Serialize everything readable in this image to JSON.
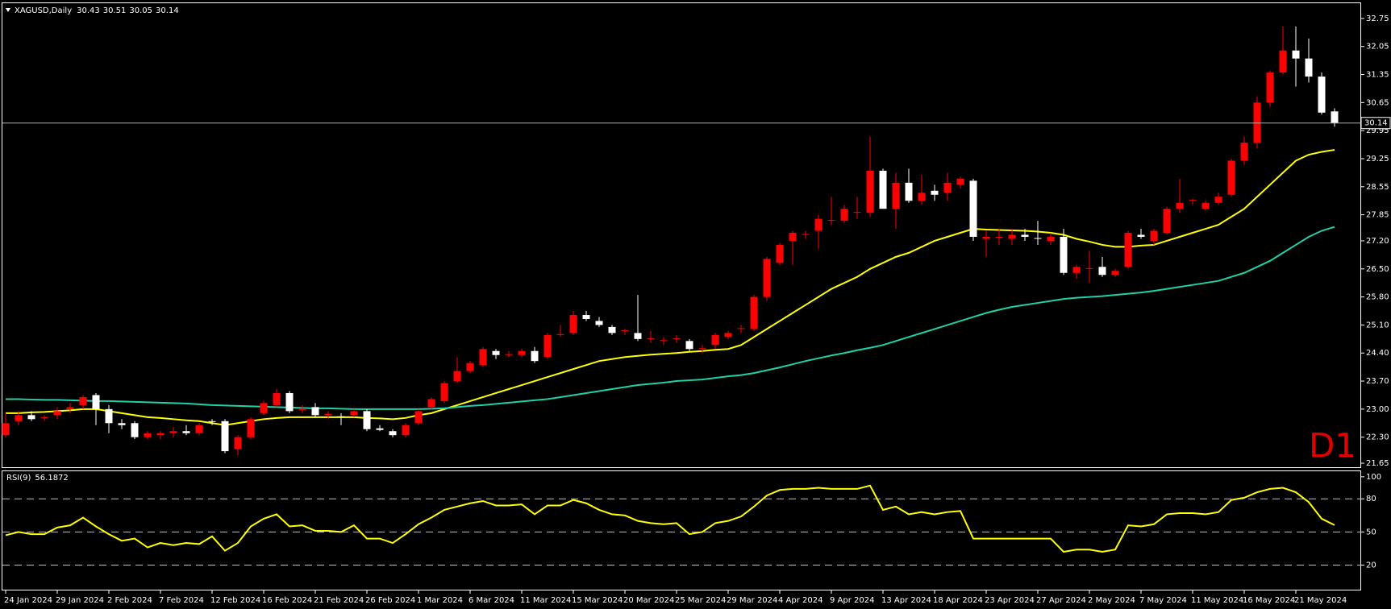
{
  "chart_data": [
    {
      "type": "candlestick",
      "title": "XAGUSD,Daily",
      "timeframe_label": "D1",
      "up_color": "#ff0000",
      "down_color": "#ffffff",
      "categories": [
        "24 Jan 2024",
        null,
        null,
        null,
        "29 Jan 2024",
        null,
        null,
        null,
        "2 Feb 2024",
        null,
        null,
        null,
        "7 Feb 2024",
        null,
        null,
        null,
        "12 Feb 2024",
        null,
        null,
        null,
        "16 Feb 2024",
        null,
        null,
        null,
        "21 Feb 2024",
        null,
        null,
        null,
        "26 Feb 2024",
        null,
        null,
        null,
        "1 Mar 2024",
        null,
        null,
        null,
        "6 Mar 2024",
        null,
        null,
        null,
        "11 Mar 2024",
        null,
        null,
        null,
        "15 Mar 2024",
        null,
        null,
        null,
        "20 Mar 2024",
        null,
        null,
        null,
        "25 Mar 2024",
        null,
        null,
        null,
        "29 Mar 2024",
        null,
        null,
        null,
        "4 Apr 2024",
        null,
        null,
        null,
        "9 Apr 2024",
        null,
        null,
        null,
        "13 Apr 2024",
        null,
        null,
        null,
        "18 Apr 2024",
        null,
        null,
        null,
        "23 Apr 2024",
        null,
        null,
        null,
        "27 Apr 2024",
        null,
        null,
        null,
        "2 May 2024",
        null,
        null,
        null,
        "7 May 2024",
        null,
        null,
        null,
        "11 May 2024",
        null,
        null,
        null,
        "16 May 2024",
        null,
        null,
        null,
        "21 May 2024",
        null,
        null,
        null
      ],
      "open": [
        22.35,
        22.7,
        22.85,
        22.78,
        22.85,
        23.0,
        23.1,
        23.35,
        23.0,
        22.65,
        22.65,
        22.3,
        22.35,
        22.4,
        22.45,
        22.4,
        22.7,
        22.7,
        22.0,
        22.3,
        22.9,
        23.1,
        23.4,
        22.98,
        23.05,
        22.85,
        22.82,
        22.85,
        22.95,
        22.52,
        22.45,
        22.35,
        22.65,
        23.05,
        23.2,
        23.7,
        23.95,
        24.1,
        24.45,
        24.35,
        24.35,
        24.45,
        24.3,
        24.85,
        24.9,
        25.35,
        25.2,
        25.05,
        24.95,
        24.9,
        24.75,
        24.7,
        24.75,
        24.7,
        24.5,
        24.6,
        24.8,
        25.0,
        25.0,
        25.8,
        26.65,
        27.2,
        27.35,
        27.45,
        27.7,
        27.7,
        27.9,
        27.9,
        28.95,
        28.0,
        28.65,
        28.2,
        28.45,
        28.4,
        28.6,
        28.7,
        27.25,
        27.28,
        27.25,
        27.35,
        27.27,
        27.2,
        27.3,
        26.4,
        26.5,
        26.55,
        26.35,
        26.55,
        27.35,
        27.2,
        27.4,
        28.0,
        28.2,
        28.0,
        28.15,
        28.35,
        29.2,
        29.65,
        30.65,
        31.4,
        31.95,
        31.75,
        31.3,
        30.43
      ],
      "high": [
        22.9,
        22.95,
        22.95,
        22.85,
        23.05,
        23.15,
        23.35,
        23.4,
        23.1,
        22.75,
        22.7,
        22.45,
        22.45,
        22.55,
        22.6,
        22.65,
        22.75,
        22.75,
        22.35,
        22.8,
        23.2,
        23.5,
        23.45,
        23.1,
        23.15,
        22.95,
        22.9,
        23.0,
        23.0,
        22.6,
        22.5,
        22.65,
        23.0,
        23.3,
        23.7,
        24.3,
        24.2,
        24.55,
        24.5,
        24.45,
        24.5,
        24.55,
        24.9,
        25.1,
        25.45,
        25.45,
        25.3,
        25.1,
        25.0,
        25.85,
        24.95,
        24.8,
        24.85,
        24.75,
        24.6,
        24.9,
        24.95,
        25.1,
        25.85,
        26.8,
        27.15,
        27.45,
        27.45,
        27.85,
        28.3,
        28.1,
        28.3,
        29.8,
        29.0,
        28.9,
        29.0,
        28.85,
        28.6,
        28.9,
        28.8,
        28.75,
        27.45,
        27.5,
        27.5,
        27.5,
        27.7,
        27.4,
        27.5,
        26.6,
        26.95,
        26.8,
        26.5,
        27.45,
        27.5,
        27.5,
        28.05,
        28.75,
        28.25,
        28.2,
        28.4,
        29.25,
        29.8,
        30.8,
        31.45,
        32.55,
        32.55,
        32.25,
        31.4,
        30.51
      ],
      "low": [
        22.3,
        22.6,
        22.7,
        22.7,
        22.75,
        22.9,
        23.0,
        22.6,
        22.4,
        22.5,
        22.25,
        22.25,
        22.25,
        22.3,
        22.35,
        22.35,
        22.6,
        21.9,
        21.85,
        22.25,
        22.85,
        23.05,
        22.9,
        22.9,
        22.8,
        22.75,
        22.6,
        22.8,
        22.45,
        22.45,
        22.3,
        22.3,
        22.6,
        23.0,
        23.15,
        23.65,
        23.9,
        24.05,
        24.25,
        24.3,
        24.3,
        24.15,
        24.25,
        24.8,
        24.85,
        25.2,
        25.05,
        24.85,
        24.85,
        24.7,
        24.65,
        24.6,
        24.65,
        24.45,
        24.4,
        24.5,
        24.75,
        24.9,
        24.95,
        25.7,
        26.6,
        26.6,
        27.25,
        27.0,
        27.6,
        27.65,
        27.75,
        27.8,
        28.0,
        27.5,
        28.15,
        28.1,
        28.2,
        28.2,
        28.5,
        27.2,
        26.8,
        27.1,
        27.1,
        27.2,
        27.1,
        27.1,
        26.35,
        26.25,
        26.15,
        26.3,
        26.3,
        26.5,
        27.25,
        27.1,
        27.35,
        27.9,
        28.1,
        27.95,
        28.1,
        28.3,
        29.1,
        29.5,
        30.55,
        31.35,
        31.05,
        31.15,
        30.35,
        30.05
      ],
      "close": [
        22.65,
        22.85,
        22.75,
        22.8,
        22.95,
        23.05,
        23.3,
        23.0,
        22.65,
        22.6,
        22.3,
        22.4,
        22.4,
        22.45,
        22.4,
        22.6,
        22.68,
        21.95,
        22.3,
        22.75,
        23.15,
        23.4,
        22.95,
        23.02,
        22.85,
        22.88,
        22.8,
        22.95,
        22.5,
        22.48,
        22.35,
        22.6,
        22.95,
        23.25,
        23.65,
        23.95,
        24.15,
        24.5,
        24.35,
        24.37,
        24.45,
        24.2,
        24.85,
        24.87,
        25.35,
        25.25,
        25.1,
        24.9,
        24.97,
        24.75,
        24.77,
        24.72,
        24.77,
        24.5,
        24.52,
        24.85,
        24.9,
        25.02,
        25.8,
        26.75,
        27.1,
        27.4,
        27.37,
        27.75,
        27.72,
        28.0,
        27.92,
        28.95,
        28.0,
        28.65,
        28.2,
        28.4,
        28.35,
        28.65,
        28.75,
        27.3,
        27.3,
        27.3,
        27.35,
        27.3,
        27.25,
        27.3,
        26.4,
        26.55,
        26.52,
        26.35,
        26.45,
        27.4,
        27.3,
        27.45,
        28.0,
        28.15,
        28.22,
        28.15,
        28.3,
        29.2,
        29.65,
        30.65,
        31.4,
        31.95,
        31.75,
        31.3,
        30.4,
        30.14
      ],
      "series": [
        {
          "color": "#ffff00",
          "values": [
            22.9,
            22.9,
            22.92,
            22.93,
            22.95,
            22.97,
            23.0,
            23.0,
            22.95,
            22.9,
            22.85,
            22.8,
            22.78,
            22.75,
            22.72,
            22.7,
            22.65,
            22.6,
            22.65,
            22.7,
            22.75,
            22.78,
            22.8,
            22.8,
            22.8,
            22.8,
            22.8,
            22.8,
            22.78,
            22.77,
            22.75,
            22.78,
            22.85,
            22.9,
            23.0,
            23.1,
            23.2,
            23.3,
            23.4,
            23.5,
            23.6,
            23.7,
            23.8,
            23.9,
            24.0,
            24.1,
            24.2,
            24.25,
            24.3,
            24.33,
            24.36,
            24.38,
            24.4,
            24.43,
            24.45,
            24.48,
            24.5,
            24.6,
            24.8,
            25.0,
            25.2,
            25.4,
            25.6,
            25.8,
            26.0,
            26.15,
            26.3,
            26.5,
            26.65,
            26.8,
            26.9,
            27.05,
            27.2,
            27.3,
            27.4,
            27.5,
            27.48,
            27.47,
            27.46,
            27.45,
            27.43,
            27.4,
            27.35,
            27.25,
            27.18,
            27.1,
            27.05,
            27.05,
            27.08,
            27.1,
            27.2,
            27.3,
            27.4,
            27.5,
            27.6,
            27.8,
            28.0,
            28.3,
            28.6,
            28.9,
            29.2,
            29.35,
            29.42,
            29.47
          ]
        },
        {
          "color": "#20d0a8",
          "values": [
            23.25,
            23.25,
            23.24,
            23.23,
            23.23,
            23.22,
            23.21,
            23.2,
            23.2,
            23.19,
            23.18,
            23.17,
            23.16,
            23.15,
            23.14,
            23.12,
            23.1,
            23.09,
            23.08,
            23.07,
            23.06,
            23.05,
            23.04,
            23.03,
            23.02,
            23.02,
            23.01,
            23.0,
            23.0,
            23.0,
            23.0,
            23.0,
            23.0,
            23.01,
            23.02,
            23.05,
            23.08,
            23.1,
            23.13,
            23.16,
            23.19,
            23.22,
            23.25,
            23.3,
            23.35,
            23.4,
            23.45,
            23.5,
            23.55,
            23.6,
            23.63,
            23.66,
            23.7,
            23.72,
            23.74,
            23.78,
            23.82,
            23.85,
            23.9,
            23.97,
            24.04,
            24.12,
            24.2,
            24.27,
            24.34,
            24.4,
            24.47,
            24.53,
            24.6,
            24.7,
            24.8,
            24.9,
            25.0,
            25.1,
            25.2,
            25.3,
            25.4,
            25.48,
            25.55,
            25.6,
            25.65,
            25.7,
            25.75,
            25.78,
            25.8,
            25.82,
            25.85,
            25.88,
            25.91,
            25.95,
            26.0,
            26.05,
            26.1,
            26.15,
            26.2,
            26.3,
            26.4,
            26.55,
            26.7,
            26.9,
            27.1,
            27.3,
            27.45,
            27.55
          ]
        }
      ],
      "ylim": [
        21.55,
        33.13
      ],
      "yticks": [
        32.75,
        32.05,
        31.35,
        30.65,
        29.95,
        29.25,
        28.55,
        27.85,
        {
          "value": 27.2,
          "label": "27.20"
        },
        {
          "value": 26.5,
          "label": "26.50"
        },
        {
          "value": 25.8,
          "label": "25.80"
        },
        {
          "value": 25.1,
          "label": "25.10"
        },
        {
          "value": 24.4,
          "label": "24.40"
        },
        {
          "value": 23.7,
          "label": "23.70"
        },
        {
          "value": 23.0,
          "label": "23.00"
        },
        {
          "value": 22.3,
          "label": "22.30"
        },
        21.65
      ]
    },
    {
      "type": "line",
      "title": "RSI(9)",
      "color": "#ffff00",
      "values": [
        47,
        50,
        48,
        48,
        54,
        56,
        63,
        55,
        48,
        42,
        44,
        36,
        40,
        38,
        40,
        39,
        46,
        33,
        40,
        55,
        62,
        66,
        55,
        56,
        51,
        51,
        50,
        56,
        44,
        44,
        40,
        48,
        57,
        63,
        70,
        73,
        76,
        78,
        74,
        74,
        75,
        66,
        74,
        74,
        79,
        76,
        70,
        66,
        65,
        60,
        58,
        57,
        58,
        48,
        50,
        58,
        60,
        64,
        73,
        83,
        88,
        89,
        89,
        90,
        89,
        89,
        89,
        92,
        70,
        73,
        66,
        68,
        66,
        68,
        69,
        44,
        44,
        44,
        44,
        44,
        44,
        44,
        32,
        34,
        34,
        32,
        34,
        56,
        55,
        57,
        66,
        67,
        67,
        66,
        68,
        79,
        81,
        86,
        89,
        90,
        86,
        77,
        62,
        56.1872
      ],
      "ylim": [
        -2.3,
        105
      ],
      "yticks": [
        100,
        80,
        50,
        20
      ],
      "levels": [
        80,
        50,
        20
      ]
    }
  ]
}
